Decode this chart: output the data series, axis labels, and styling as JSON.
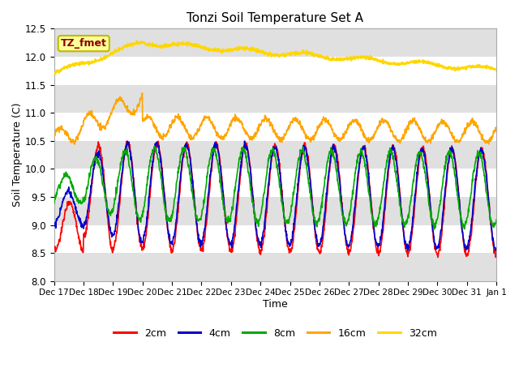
{
  "title": "Tonzi Soil Temperature Set A",
  "xlabel": "Time",
  "ylabel": "Soil Temperature (C)",
  "ylim": [
    8.0,
    12.5
  ],
  "yticks": [
    8.0,
    8.5,
    9.0,
    9.5,
    10.0,
    10.5,
    11.0,
    11.5,
    12.0,
    12.5
  ],
  "annotation_label": "TZ_fmet",
  "annotation_text_color": "#8B0000",
  "annotation_bg_color": "#FFFF99",
  "annotation_border_color": "#BBBB00",
  "lines": {
    "2cm": {
      "color": "#FF0000",
      "linewidth": 1.2
    },
    "4cm": {
      "color": "#0000CC",
      "linewidth": 1.2
    },
    "8cm": {
      "color": "#00AA00",
      "linewidth": 1.2
    },
    "16cm": {
      "color": "#FFA500",
      "linewidth": 1.2
    },
    "32cm": {
      "color": "#FFD700",
      "linewidth": 1.5
    }
  },
  "legend_order": [
    "2cm",
    "4cm",
    "8cm",
    "16cm",
    "32cm"
  ],
  "band_color": "#E0E0E0",
  "n_days": 15,
  "ppd": 96,
  "xtick_labels": [
    "Dec 17",
    "Dec 18",
    "Dec 19",
    "Dec 20",
    "Dec 21",
    "Dec 22",
    "Dec 23",
    "Dec 24",
    "Dec 25",
    "Dec 26",
    "Dec 27",
    "Dec 28",
    "Dec 29",
    "Dec 30",
    "Dec 31",
    "Jan 1"
  ]
}
